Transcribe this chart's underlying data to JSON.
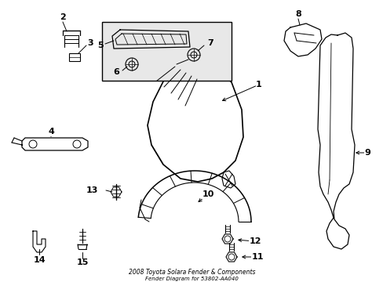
{
  "title": "2008 Toyota Solara Fender & Components",
  "subtitle": "Fender Diagram for 53802-AA040",
  "background_color": "#ffffff",
  "line_color": "#000000",
  "text_color": "#000000",
  "inset_bg": "#e8e8e8",
  "fig_w": 4.89,
  "fig_h": 3.6,
  "dpi": 100
}
